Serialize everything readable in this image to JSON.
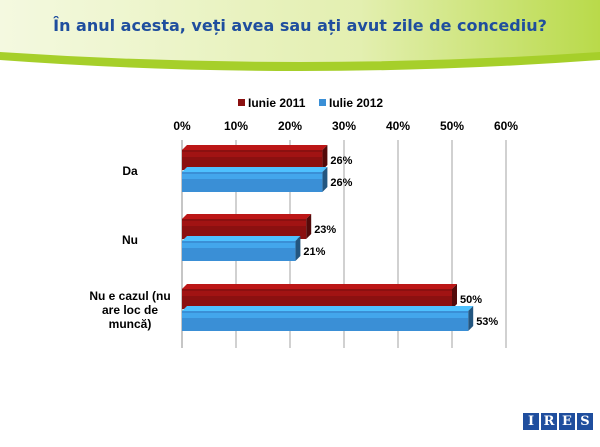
{
  "header": {
    "title": "În anul acesta, veți avea sau ați avut zile de concediu?",
    "colors": {
      "banner_green": "#a6cf2a",
      "banner_light": "#eef5c8",
      "title": "#1f4e9e"
    }
  },
  "logo": {
    "letters": [
      "I",
      "R",
      "E",
      "S"
    ]
  },
  "chart_data": {
    "type": "bar",
    "orientation": "horizontal",
    "x_axis_position": "top",
    "xlim": [
      0,
      60
    ],
    "ticks": [
      "0%",
      "10%",
      "20%",
      "30%",
      "40%",
      "50%",
      "60%"
    ],
    "tick_values": [
      0,
      10,
      20,
      30,
      40,
      50,
      60
    ],
    "categories": [
      [
        "Da"
      ],
      [
        "Nu"
      ],
      [
        "Nu e cazul (nu",
        "are loc de",
        "muncă)"
      ]
    ],
    "series": [
      {
        "name": "Iunie 2011",
        "color": "#8b1010",
        "values": [
          26,
          23,
          50
        ],
        "labels": [
          "26%",
          "23%",
          "50%"
        ]
      },
      {
        "name": "Iulie 2012",
        "color": "#3a8fd6",
        "values": [
          26,
          21,
          53
        ],
        "labels": [
          "26%",
          "21%",
          "53%"
        ]
      }
    ],
    "legend_position": "top",
    "grid": true
  }
}
